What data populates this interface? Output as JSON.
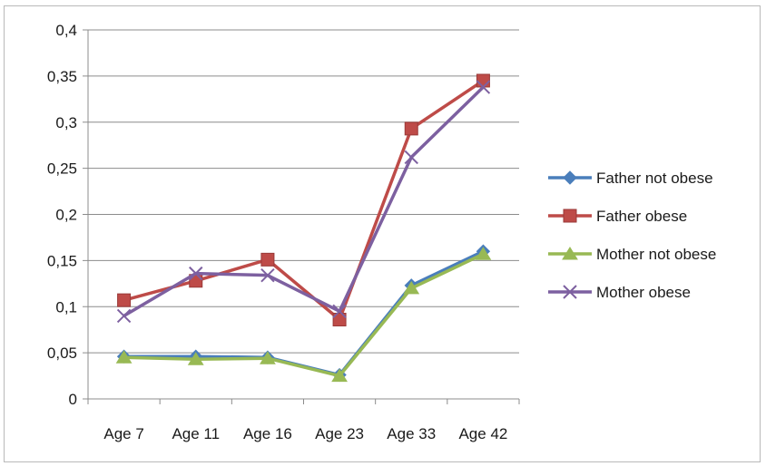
{
  "chart_data": {
    "type": "line",
    "categories": [
      "Age 7",
      "Age 11",
      "Age 16",
      "Age 23",
      "Age 33",
      "Age 42"
    ],
    "ylim": [
      0,
      0.4
    ],
    "yticks": [
      0,
      0.05,
      0.1,
      0.15,
      0.2,
      0.25,
      0.3,
      0.35,
      0.4
    ],
    "ytick_labels": [
      "0",
      "0,05",
      "0,1",
      "0,15",
      "0,2",
      "0,25",
      "0,3",
      "0,35",
      "0,4"
    ],
    "grid": true,
    "legend_position": "right",
    "series": [
      {
        "name": "Father not obese",
        "values": [
          0.046,
          0.046,
          0.045,
          0.026,
          0.123,
          0.16
        ],
        "color": "#4a7ebb",
        "marker": "diamond"
      },
      {
        "name": "Father obese",
        "values": [
          0.107,
          0.128,
          0.151,
          0.086,
          0.293,
          0.345
        ],
        "color": "#be4b48",
        "marker": "square"
      },
      {
        "name": "Mother not obese",
        "values": [
          0.045,
          0.043,
          0.044,
          0.025,
          0.12,
          0.157
        ],
        "color": "#98b954",
        "marker": "triangle"
      },
      {
        "name": "Mother obese",
        "values": [
          0.09,
          0.136,
          0.134,
          0.095,
          0.262,
          0.338
        ],
        "color": "#7d60a0",
        "marker": "x"
      }
    ]
  }
}
